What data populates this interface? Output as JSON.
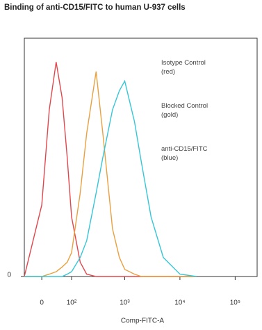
{
  "chart_data": {
    "type": "line",
    "title": "Binding of anti-CD15/FITC to human U-937 cells",
    "x_label": "Comp-FITC-A",
    "x_scale": "biexponential",
    "x": [
      -50,
      0,
      20,
      40,
      60,
      80,
      100,
      150,
      200,
      300,
      400,
      600,
      800,
      1000,
      1500,
      2000,
      3000,
      5000,
      10000,
      20000
    ],
    "series": [
      {
        "name": "Isotype Control (red)",
        "color": "#e0474c",
        "values": [
          0,
          30,
          70,
          90,
          75,
          50,
          25,
          6,
          1,
          0,
          0,
          0,
          0,
          0,
          0,
          0,
          0,
          0,
          0,
          0
        ]
      },
      {
        "name": "Blocked Control (gold)",
        "color": "#e8a040",
        "values": [
          0,
          0,
          1,
          2,
          4,
          6,
          10,
          35,
          60,
          86,
          60,
          20,
          8,
          3,
          1,
          0,
          0,
          0,
          0,
          0
        ]
      },
      {
        "name": "anti-CD15/FITC (blue)",
        "color": "#35c6d6",
        "values": [
          0,
          0,
          0,
          0,
          0,
          1,
          2,
          8,
          15,
          35,
          50,
          70,
          78,
          82,
          65,
          48,
          25,
          8,
          1,
          0
        ]
      }
    ],
    "xlim": [
      -50,
      250000
    ],
    "xticks": [
      0,
      {
        "value": 100,
        "label": "10²"
      },
      {
        "value": 1000,
        "label": "10³"
      },
      {
        "value": 10000,
        "label": "10⁴"
      },
      {
        "value": 100000,
        "label": "10⁵"
      }
    ],
    "ylim": [
      0,
      100
    ],
    "yticks": [
      0
    ]
  }
}
